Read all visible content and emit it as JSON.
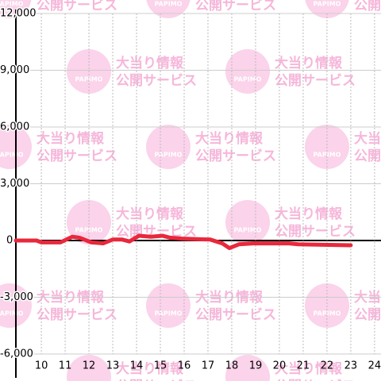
{
  "chart_data": {
    "type": "line",
    "x": [
      8.93,
      9.8,
      10.0,
      10.8,
      11.3,
      11.6,
      12.1,
      12.6,
      13.0,
      13.4,
      13.7,
      14.1,
      14.6,
      15.1,
      15.4,
      15.9,
      17.1,
      17.6,
      17.9,
      18.3,
      18.9,
      20.4,
      20.8,
      23.0
    ],
    "values": [
      0,
      0,
      -100,
      -100,
      200,
      150,
      -100,
      -150,
      50,
      50,
      -50,
      250,
      200,
      250,
      150,
      100,
      50,
      -150,
      -400,
      -200,
      -150,
      -150,
      -200,
      -250
    ],
    "color": "#e8283c",
    "xlim": [
      8.93,
      24.27
    ],
    "xticks": [
      10,
      11,
      12,
      13,
      14,
      15,
      16,
      17,
      18,
      19,
      20,
      21,
      22,
      23,
      24
    ],
    "ylim": [
      -6000,
      12000
    ],
    "yticks": [
      {
        "value": -6000,
        "label": "-6,000"
      },
      {
        "value": -3000,
        "label": "-3,000"
      },
      0,
      {
        "value": 3000,
        "label": "3,000"
      },
      {
        "value": 6000,
        "label": "6,000"
      },
      {
        "value": 9000,
        "label": "9,000"
      },
      {
        "value": 12000,
        "label": "12,000"
      }
    ],
    "grid": true,
    "watermark": {
      "logo": "PAPIMO",
      "line1": "大当り情報",
      "line2": "公開サービス"
    }
  }
}
